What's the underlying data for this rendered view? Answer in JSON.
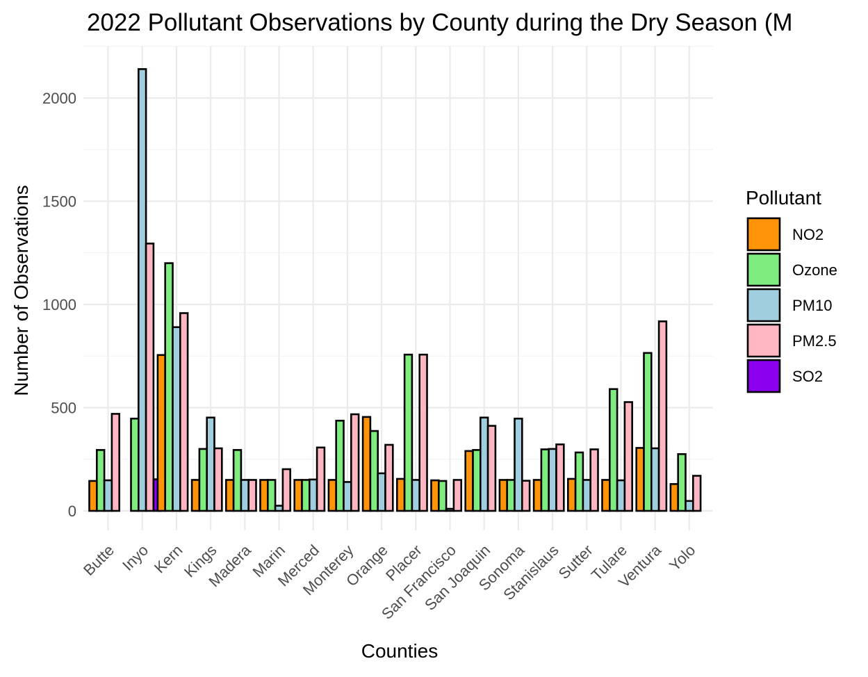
{
  "chart_data": {
    "type": "bar",
    "title": "2022 Pollutant Observations by County during the Dry Season (M",
    "xlabel": "Counties",
    "ylabel": "Number of Observations",
    "ylim": [
      0,
      2250
    ],
    "yticks": [
      0,
      500,
      1000,
      1500,
      2000
    ],
    "grid": true,
    "legend": {
      "title": "Pollutant",
      "placement": "right"
    },
    "categories": [
      "Butte",
      "Inyo",
      "Kern",
      "Kings",
      "Madera",
      "Marin",
      "Merced",
      "Monterey",
      "Orange",
      "Placer",
      "San Francisco",
      "San Joaquin",
      "Sonoma",
      "Stanislaus",
      "Sutter",
      "Tulare",
      "Ventura",
      "Yolo"
    ],
    "series": [
      {
        "name": "NO2",
        "color": "#ff9408",
        "values": [
          145,
          0,
          755,
          150,
          150,
          150,
          150,
          150,
          455,
          155,
          148,
          290,
          150,
          150,
          155,
          150,
          305,
          130
        ]
      },
      {
        "name": "Ozone",
        "color": "#7fec7f",
        "values": [
          295,
          447,
          1200,
          300,
          295,
          150,
          150,
          437,
          387,
          757,
          145,
          295,
          150,
          298,
          283,
          590,
          765,
          275
        ]
      },
      {
        "name": "PM10",
        "color": "#a1cedf",
        "values": [
          148,
          2140,
          890,
          452,
          150,
          25,
          152,
          140,
          182,
          150,
          10,
          452,
          447,
          300,
          150,
          148,
          303,
          48
        ]
      },
      {
        "name": "PM2.5",
        "color": "#ffb6c3",
        "values": [
          470,
          1295,
          958,
          303,
          150,
          202,
          307,
          468,
          320,
          757,
          150,
          412,
          146,
          322,
          298,
          527,
          918,
          170
        ]
      },
      {
        "name": "SO2",
        "color": "#8b00ee",
        "values": [
          0,
          153,
          0,
          0,
          0,
          0,
          0,
          0,
          0,
          0,
          0,
          0,
          0,
          0,
          0,
          0,
          0,
          0
        ]
      }
    ]
  }
}
